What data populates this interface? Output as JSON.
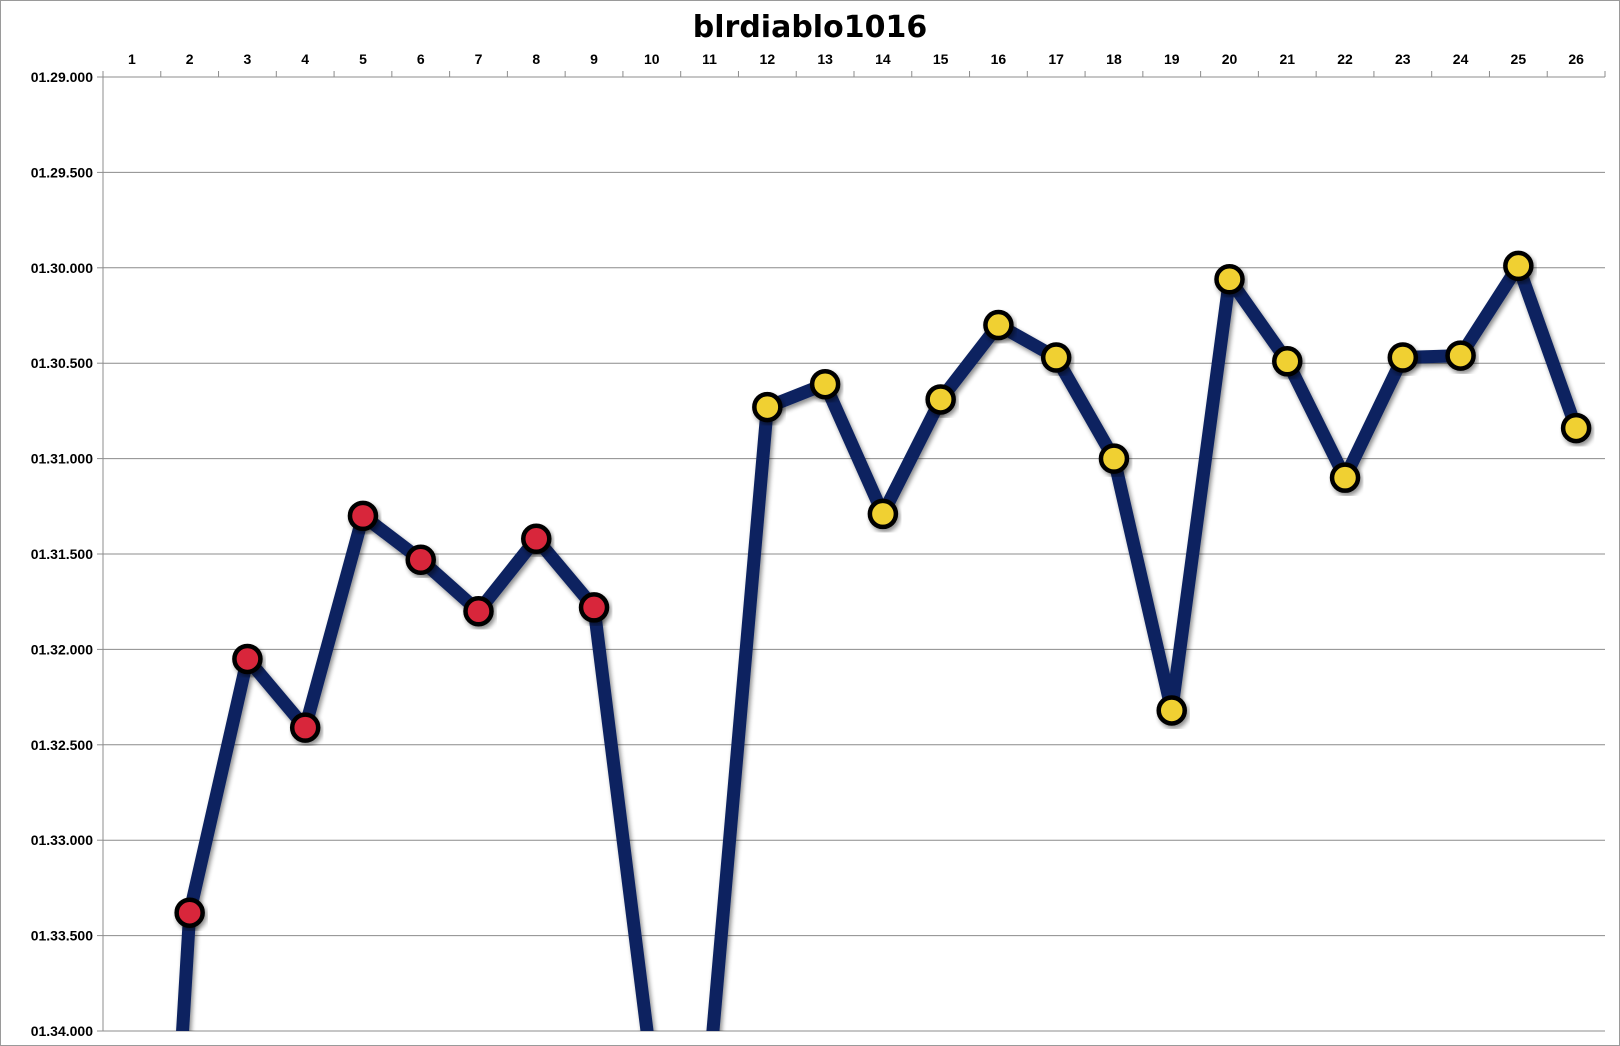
{
  "chart_data": {
    "type": "line",
    "title": "blrdiablo1016",
    "xlabel": "",
    "ylabel": "",
    "categories": [
      "1",
      "2",
      "3",
      "4",
      "5",
      "6",
      "7",
      "8",
      "9",
      "10",
      "11",
      "12",
      "13",
      "14",
      "15",
      "16",
      "17",
      "18",
      "19",
      "20",
      "21",
      "22",
      "23",
      "24",
      "25",
      "26"
    ],
    "y_tick_labels": [
      "01.29.000",
      "01.29.500",
      "01.30.000",
      "01.30.500",
      "01.31.000",
      "01.31.500",
      "01.32.000",
      "01.32.500",
      "01.33.000",
      "01.33.500",
      "01.34.000"
    ],
    "y_axis_reversed": true,
    "x_axis_position": "top",
    "ylim": [
      89.0,
      94.0
    ],
    "y_unit": "seconds",
    "grid": true,
    "legend": "none",
    "line_color": "#0b2461",
    "series": [
      {
        "values": [
          null,
          93.38,
          92.05,
          92.41,
          91.3,
          91.53,
          91.8,
          91.42,
          91.78,
          94.2,
          94.2,
          90.73,
          90.61,
          91.29,
          90.69,
          90.3,
          90.47,
          91.0,
          92.32,
          90.06,
          90.49,
          91.1,
          90.47,
          90.46,
          89.99,
          90.84
        ],
        "marker_fills": [
          "",
          "#d8283a",
          "#d8283a",
          "#d8283a",
          "#d8283a",
          "#d8283a",
          "#d8283a",
          "#d8283a",
          "#d8283a",
          "",
          "",
          "#f0d030",
          "#f0d030",
          "#f0d030",
          "#f0d030",
          "#f0d030",
          "#f0d030",
          "#f0d030",
          "#f0d030",
          "#f0d030",
          "#f0d030",
          "#f0d030",
          "#f0d030",
          "#f0d030",
          "#f0d030",
          "#f0d030"
        ]
      }
    ]
  }
}
